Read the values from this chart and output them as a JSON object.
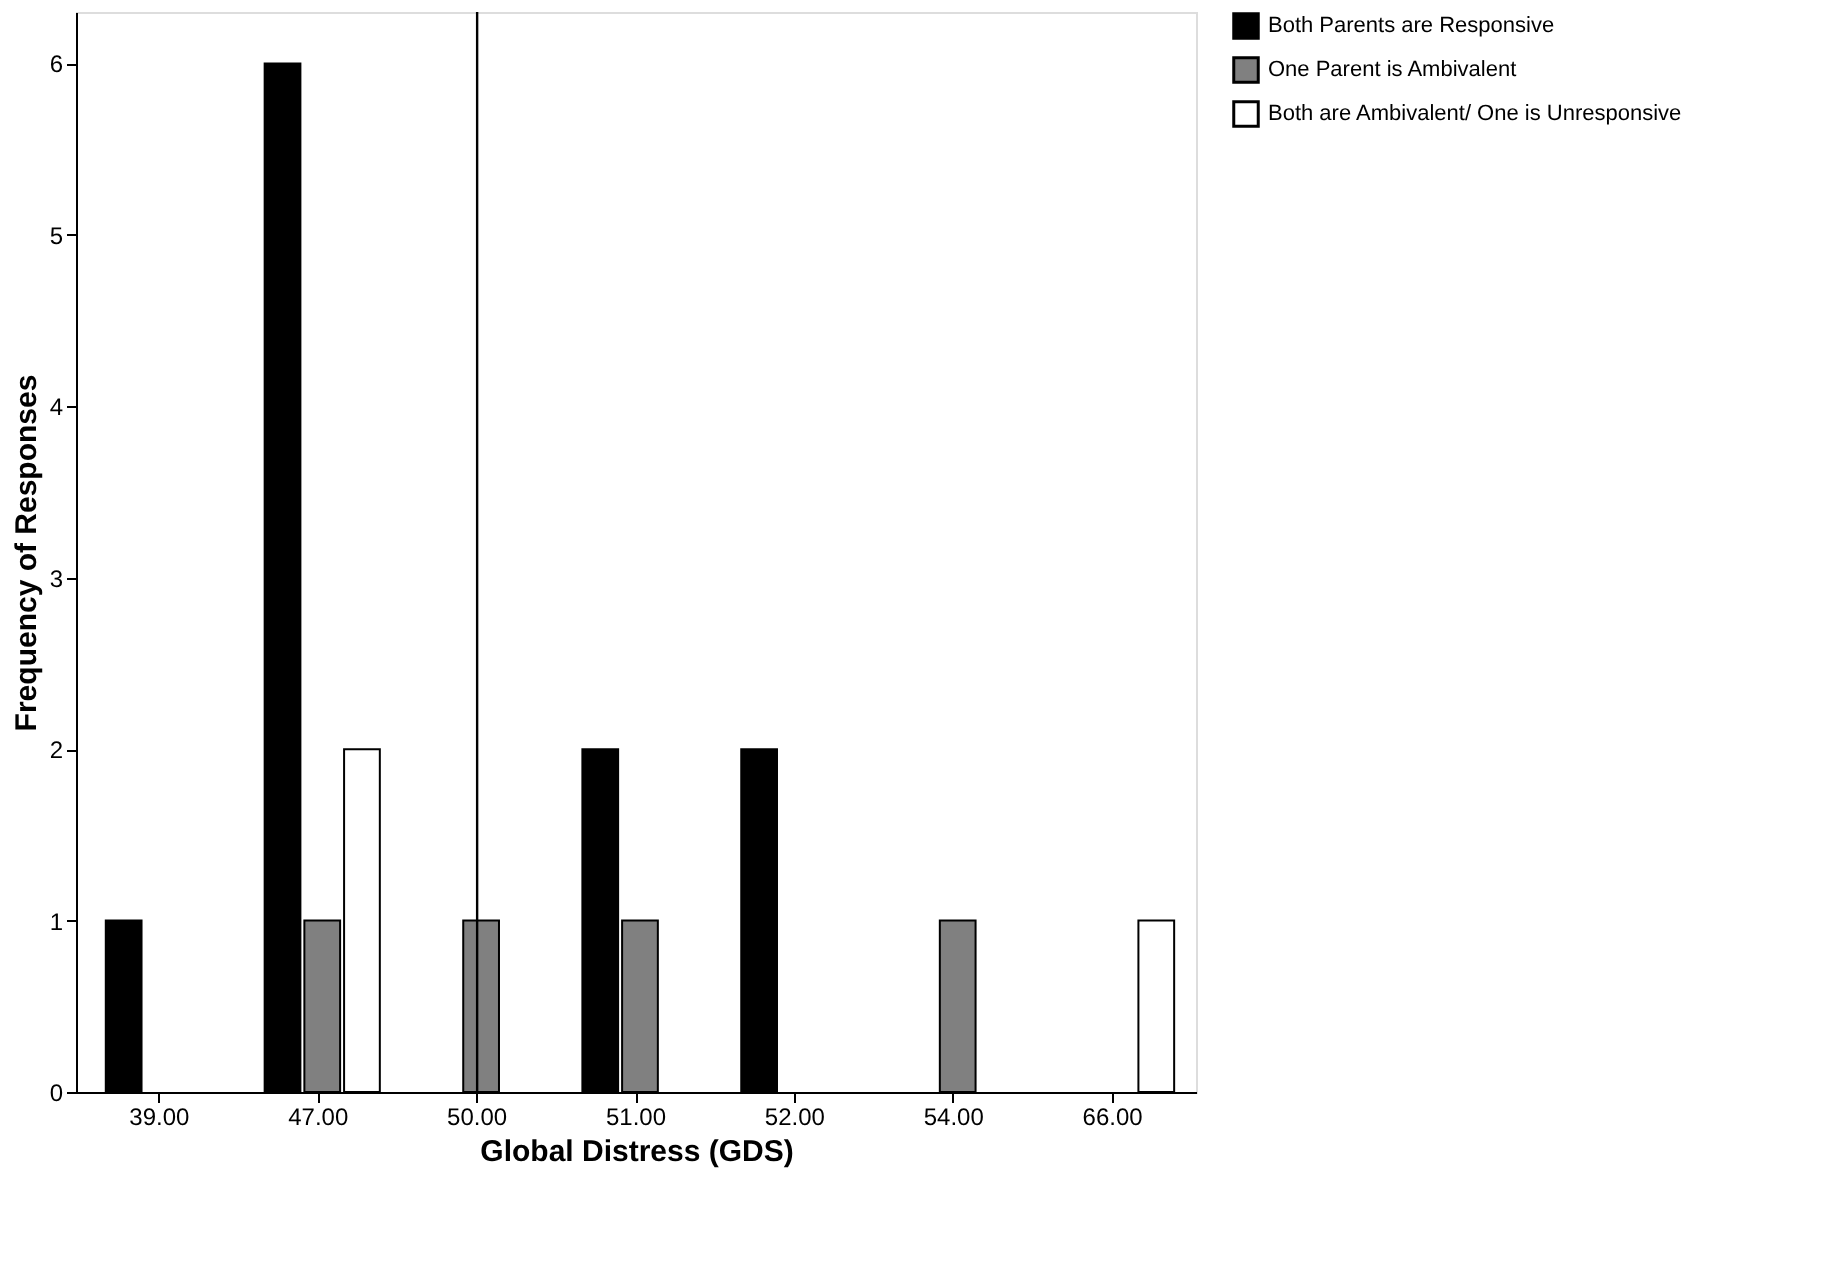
{
  "chart_data": {
    "type": "bar",
    "xlabel": "Global Distress (GDS)",
    "ylabel": "Frequency of Responses",
    "categories": [
      "39.00",
      "47.00",
      "50.00",
      "51.00",
      "52.00",
      "54.00",
      "66.00"
    ],
    "series": [
      {
        "name": "Both Parents are Responsive",
        "color": "#000000",
        "values": [
          1,
          6,
          null,
          2,
          2,
          null,
          null
        ]
      },
      {
        "name": "One Parent is Ambivalent",
        "color": "#808080",
        "values": [
          null,
          1,
          1,
          1,
          null,
          1,
          null
        ]
      },
      {
        "name": "Both are Ambivalent/ One is Unresponsive",
        "color": "#ffffff",
        "values": [
          null,
          2,
          null,
          null,
          null,
          null,
          1
        ]
      }
    ],
    "ylim": [
      0,
      6.3
    ],
    "yticks": [
      0,
      1,
      2,
      3,
      4,
      5,
      6
    ],
    "grid": false,
    "legend": "right",
    "ref_lines": [
      {
        "axis": "x",
        "value": "50.00"
      }
    ]
  }
}
